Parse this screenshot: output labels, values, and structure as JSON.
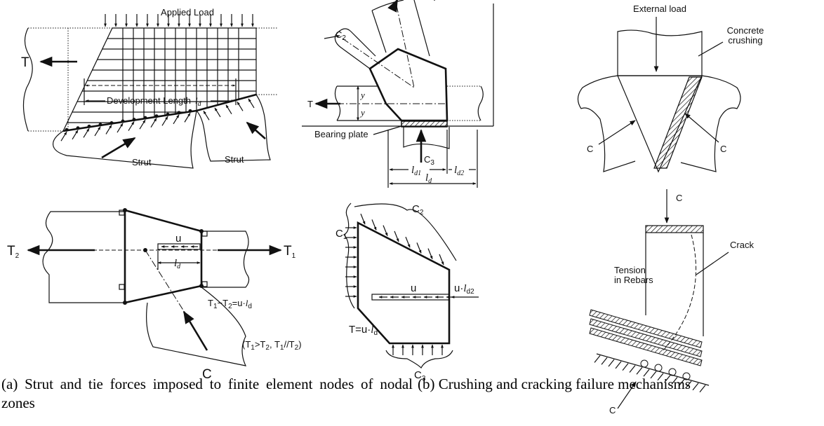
{
  "panel_a": {
    "applied_load": "Applied Load",
    "tie": "T",
    "development_length": "Development Length",
    "development_length_symbol": [
      "l",
      "d"
    ],
    "strut_left": "Strut",
    "strut_right": "Strut"
  },
  "panel_b": {
    "compression_2": [
      "C",
      "2"
    ],
    "tie": "T",
    "offset_top": "y",
    "offset_bottom": "y",
    "bearing_plate": "Bearing plate",
    "compression_3": [
      "C",
      "3"
    ],
    "length_1": [
      "l",
      "d1"
    ],
    "length_2": [
      "l",
      "d2"
    ],
    "length_total": [
      "l",
      "d"
    ]
  },
  "panel_c": {
    "external_load": "External load",
    "concrete_crushing": [
      "Concrete",
      "crushing"
    ],
    "compression_left": "C",
    "compression_right": "C"
  },
  "panel_d": {
    "tie_left": [
      "T",
      "2"
    ],
    "tie_right": [
      "T",
      "1"
    ],
    "bond_stress": "u",
    "bond_length": [
      "l",
      "d"
    ],
    "equilibrium": [
      "T",
      "1",
      "−T",
      "2",
      "=u·",
      "l",
      "d"
    ],
    "condition": [
      "(T",
      "1",
      ">T",
      "2",
      ", T",
      "1",
      "//T",
      "2",
      ")"
    ],
    "compression": "C"
  },
  "panel_e": {
    "compression_1": [
      "C",
      "1"
    ],
    "compression_2": [
      "C",
      "2"
    ],
    "bond_stress": "u",
    "end_force": [
      "u·",
      "l",
      "d2"
    ],
    "tie_force": [
      "T=u·",
      "l",
      "d"
    ],
    "compression_3": [
      "C",
      "3"
    ]
  },
  "panel_f": {
    "compression_top": "C",
    "crack": "Crack",
    "rebar_tension": [
      "Tension",
      "in Rebars"
    ],
    "compression_bottom": "C"
  },
  "captions": {
    "a": "(a) Strut and tie forces imposed to finite element nodes of nodal zones",
    "b": "(b) Crushing and cracking failure mechanisms"
  }
}
